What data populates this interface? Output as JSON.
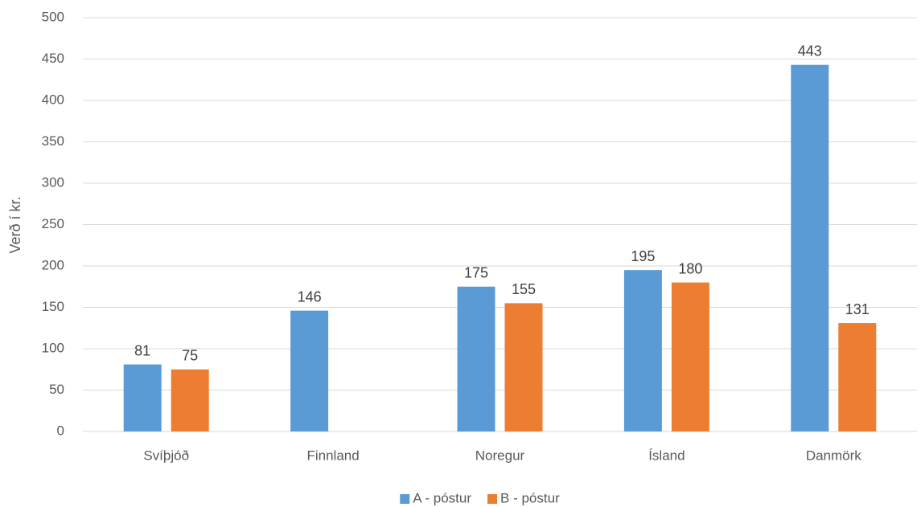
{
  "chart_data": {
    "type": "bar",
    "ylabel": "Verð í kr.",
    "categories": [
      "Svíþjóð",
      "Finnland",
      "Noregur",
      "Ísland",
      "Danmörk"
    ],
    "series": [
      {
        "name": "A - póstur",
        "color": "#5b9bd5",
        "values": [
          81,
          146,
          175,
          195,
          443
        ]
      },
      {
        "name": "B - póstur",
        "color": "#ed7d31",
        "values": [
          75,
          null,
          155,
          180,
          131
        ]
      }
    ],
    "ylim": [
      0,
      500
    ],
    "yticks": [
      0,
      50,
      100,
      150,
      200,
      250,
      300,
      350,
      400,
      450,
      500
    ],
    "grid": true,
    "legend": "bottom",
    "data_labels": true
  }
}
